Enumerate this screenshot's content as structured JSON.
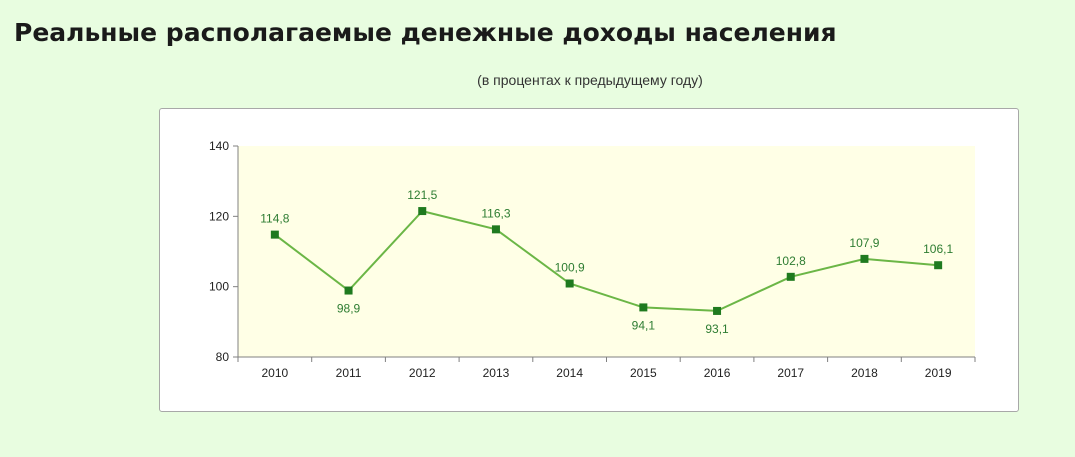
{
  "page": {
    "title": "Реальные располагаемые денежные доходы населения",
    "subtitle": "(в процентах к предыдущему году)"
  },
  "colors": {
    "background": "#e8fde0",
    "plot_area": "#ffffe6",
    "series": "#6bb646",
    "marker": "#1f7a1f",
    "data_label": "#2e7d32",
    "axis": "#808080"
  },
  "chart_data": {
    "type": "line",
    "title": "",
    "xlabel": "",
    "ylabel": "",
    "categories": [
      "2010",
      "2011",
      "2012",
      "2013",
      "2014",
      "2015",
      "2016",
      "2017",
      "2018",
      "2019"
    ],
    "series": [
      {
        "values": [
          114.8,
          98.9,
          121.5,
          116.3,
          100.9,
          94.1,
          93.1,
          102.8,
          107.9,
          106.1
        ],
        "labels": [
          "114,8",
          "98,9",
          "121,5",
          "116,3",
          "100,9",
          "94,1",
          "93,1",
          "102,8",
          "107,9",
          "106,1"
        ],
        "label_position": [
          "above",
          "below",
          "above",
          "above",
          "above",
          "below",
          "below",
          "above",
          "above",
          "above"
        ]
      }
    ],
    "ylim": [
      80,
      140
    ],
    "yticks": [
      80,
      100,
      120,
      140
    ],
    "grid": false,
    "legend": "none",
    "markers": "square"
  }
}
